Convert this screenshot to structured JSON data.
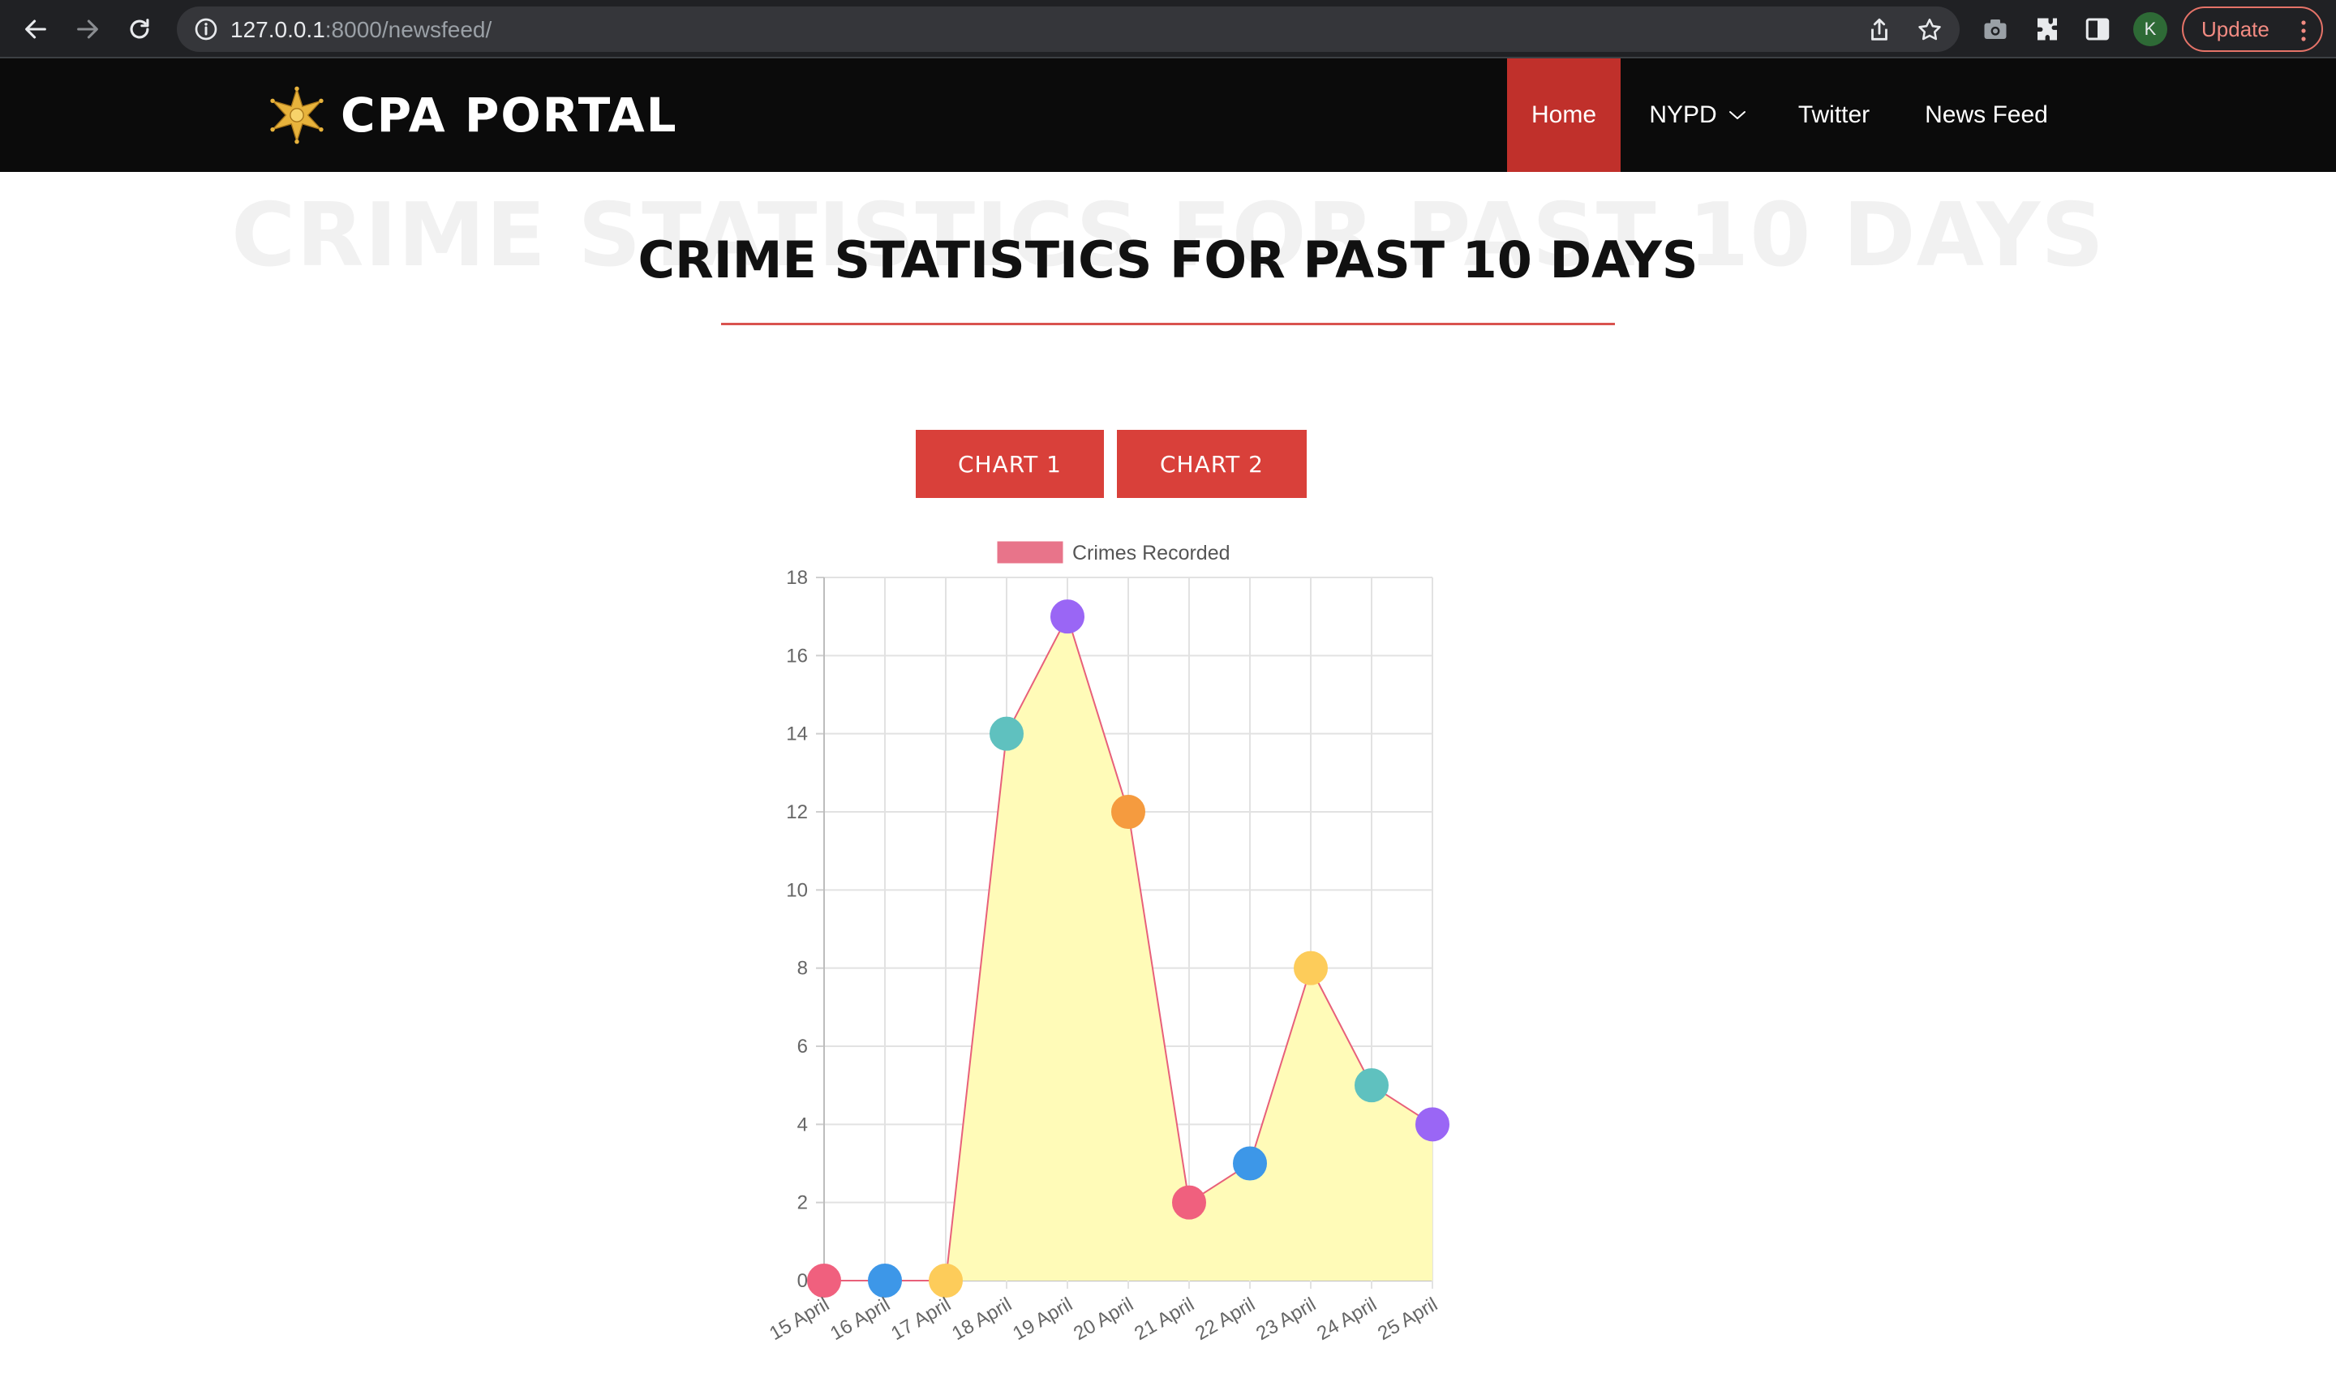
{
  "browser": {
    "url_host": "127.0.0.1",
    "url_path": ":8000/newsfeed/",
    "profile_initial": "K",
    "update_label": "Update"
  },
  "site": {
    "brand": "CPA PORTAL",
    "nav": [
      {
        "label": "Home",
        "active": true
      },
      {
        "label": "NYPD",
        "dropdown": true
      },
      {
        "label": "Twitter"
      },
      {
        "label": "News Feed"
      }
    ]
  },
  "section": {
    "background_title": "CRIME STATISTICS FOR PAST 10 DAYS",
    "title": "CRIME STATISTICS FOR PAST 10 DAYS"
  },
  "buttons": {
    "chart1": "CHART 1",
    "chart2": "CHART 2"
  },
  "colors": {
    "accent": "#c0302b",
    "button": "#d9403a",
    "line": "#e8607a",
    "fill": "#fffbb8"
  },
  "chart_data": {
    "type": "line",
    "legend": {
      "label": "Crimes Recorded",
      "position": "top",
      "color": "#e8748a"
    },
    "categories": [
      "15 April",
      "16 April",
      "17 April",
      "18 April",
      "19 April",
      "20 April",
      "21 April",
      "22 April",
      "23 April",
      "24 April",
      "25 April"
    ],
    "series": [
      {
        "name": "Crimes Recorded",
        "values": [
          0,
          0,
          0,
          14,
          17,
          12,
          2,
          3,
          8,
          5,
          4
        ]
      }
    ],
    "point_colors": [
      "#f0607e",
      "#3d97e8",
      "#fdcc5a",
      "#5fc1bf",
      "#9a66f5",
      "#f59b3f",
      "#f0607e",
      "#3d97e8",
      "#fdcc5a",
      "#5fc1bf",
      "#9a66f5"
    ],
    "ylim": [
      0,
      18
    ],
    "yticks": [
      0,
      2,
      4,
      6,
      8,
      10,
      12,
      14,
      16,
      18
    ],
    "grid": true,
    "filled": true
  }
}
